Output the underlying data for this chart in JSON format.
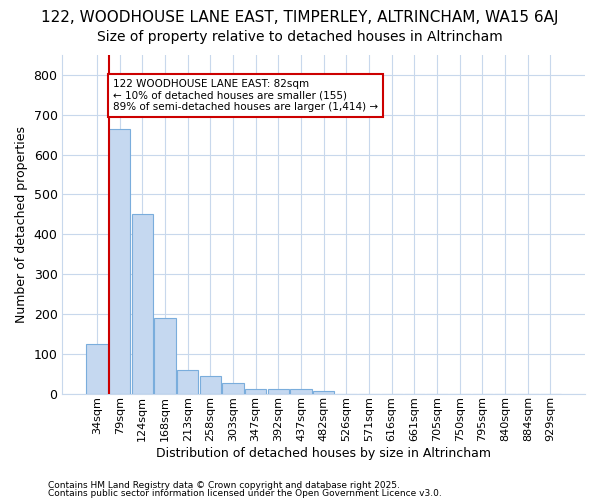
{
  "title1": "122, WOODHOUSE LANE EAST, TIMPERLEY, ALTRINCHAM, WA15 6AJ",
  "title2": "Size of property relative to detached houses in Altrincham",
  "xlabel": "Distribution of detached houses by size in Altrincham",
  "ylabel": "Number of detached properties",
  "categories": [
    "34sqm",
    "79sqm",
    "124sqm",
    "168sqm",
    "213sqm",
    "258sqm",
    "303sqm",
    "347sqm",
    "392sqm",
    "437sqm",
    "482sqm",
    "526sqm",
    "571sqm",
    "616sqm",
    "661sqm",
    "705sqm",
    "750sqm",
    "795sqm",
    "840sqm",
    "884sqm",
    "929sqm"
  ],
  "values": [
    125,
    665,
    450,
    190,
    60,
    45,
    27,
    12,
    12,
    12,
    7,
    0,
    0,
    0,
    0,
    0,
    0,
    0,
    0,
    0,
    0
  ],
  "bar_color": "#c5d8f0",
  "bar_edge_color": "#7aaddc",
  "highlight_color": "#cc0000",
  "annotation_line1": "122 WOODHOUSE LANE EAST: 82sqm",
  "annotation_line2": "← 10% of detached houses are smaller (155)",
  "annotation_line3": "89% of semi-detached houses are larger (1,414) →",
  "annotation_box_color": "#ffffff",
  "annotation_box_edge": "#cc0000",
  "ylim": [
    0,
    850
  ],
  "yticks": [
    0,
    100,
    200,
    300,
    400,
    500,
    600,
    700,
    800
  ],
  "footer1": "Contains HM Land Registry data © Crown copyright and database right 2025.",
  "footer2": "Contains public sector information licensed under the Open Government Licence v3.0.",
  "bg_color": "#ffffff",
  "plot_bg_color": "#ffffff",
  "grid_color": "#c8d8ec",
  "title_fontsize": 11,
  "subtitle_fontsize": 10,
  "tick_fontsize": 8,
  "label_fontsize": 9,
  "footer_fontsize": 6.5
}
